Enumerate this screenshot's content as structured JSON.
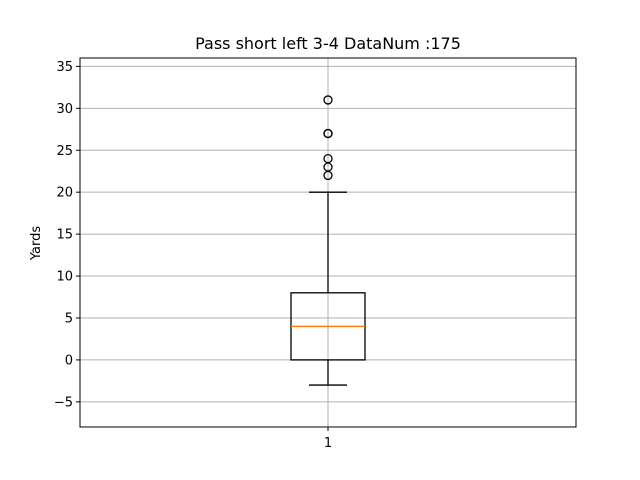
{
  "chart_data": {
    "type": "box",
    "title": "Pass short left    3-4    DataNum :175",
    "xlabel": "",
    "ylabel": "Yards",
    "ylim": [
      -8,
      36
    ],
    "yticks": [
      -5,
      0,
      5,
      10,
      15,
      20,
      25,
      30,
      35
    ],
    "ytick_labels": [
      "−5",
      "0",
      "5",
      "10",
      "15",
      "20",
      "25",
      "30",
      "35"
    ],
    "categories": [
      "1"
    ],
    "grid": true,
    "boxes": [
      {
        "category": "1",
        "q1": 0,
        "median": 4,
        "q3": 8,
        "whisker_low": -3,
        "whisker_high": 20,
        "outliers": [
          22,
          23,
          24,
          27,
          27,
          31
        ]
      }
    ],
    "colors": {
      "box": "#000000",
      "median": "#ff7f0e",
      "grid": "#b0b0b0"
    }
  }
}
